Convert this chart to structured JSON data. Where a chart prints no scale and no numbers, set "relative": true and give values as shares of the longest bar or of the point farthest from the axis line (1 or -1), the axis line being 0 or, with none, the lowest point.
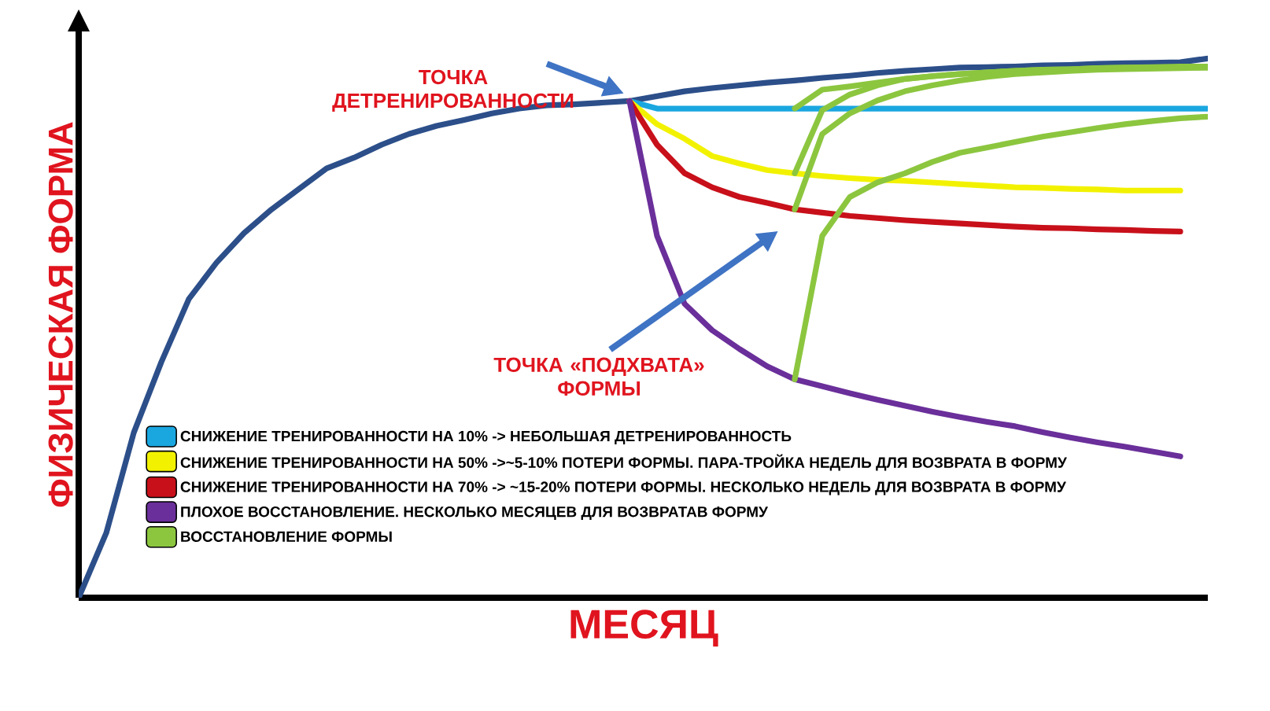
{
  "chart_data": {
    "type": "line",
    "relative": true,
    "xlabel": "МЕСЯЦ",
    "ylabel": "ФИЗИЧЕСКАЯ ФОРМА",
    "legend": "bottom left",
    "annotations": [
      "ТОЧКА ДЕТРЕНИРОВАННОСТИ",
      "ТОЧКА «ПОДХВАТА» ФОРМЫ"
    ],
    "categories": [
      null,
      null,
      null,
      null,
      null,
      null,
      null,
      null,
      null,
      null,
      null,
      null,
      null,
      null,
      null,
      null,
      null,
      null,
      null,
      null,
      null,
      null,
      null,
      null,
      null,
      null,
      null,
      null,
      null,
      null,
      null,
      null,
      null,
      null,
      null,
      null,
      null,
      null,
      null,
      null,
      null,
      null
    ],
    "series": [
      {
        "color": "#2c4f8a",
        "values": [
          0,
          0.12,
          0.306,
          0.437,
          0.554,
          0.621,
          0.676,
          0.72,
          0.758,
          0.796,
          0.816,
          0.84,
          0.86,
          0.875,
          0.886,
          0.898,
          0.907,
          0.913,
          0.915,
          0.918,
          0.921,
          0.93,
          0.939,
          0.945,
          0.95,
          0.955,
          0.959,
          0.964,
          0.968,
          0.973,
          0.977,
          0.98,
          0.983,
          0.984,
          0.985,
          0.987,
          0.988,
          0.99,
          0.991,
          0.992,
          0.993,
          1
        ]
      },
      {
        "name": "СНИЖЕНИЕ ТРЕНИРОВАННОСТИ НА 10% -> НЕБОЛЬШАЯ ДЕТРЕНИРОВАННОСТЬ",
        "color": "#1aa7e0",
        "values": [
          null,
          null,
          null,
          null,
          null,
          null,
          null,
          null,
          null,
          null,
          null,
          null,
          null,
          null,
          null,
          null,
          null,
          null,
          null,
          null,
          0.921,
          0.907,
          0.907,
          0.907,
          0.907,
          0.907,
          0.907,
          0.907,
          0.907,
          0.907,
          0.907,
          0.907,
          0.907,
          0.907,
          0.907,
          0.907,
          0.907,
          0.907,
          0.907,
          0.907,
          0.907,
          0.907
        ]
      },
      {
        "name": "СНИЖЕНИЕ ТРЕНИРОВАННОСТИ НА 50% ->~5-10% ПОТЕРИ ФОРМЫ. ПАРА-ТРОЙКА НЕДЕЛЬ ДЛЯ ВОЗВРАТА В ФОРМУ",
        "color": "#f2f200",
        "values": [
          null,
          null,
          null,
          null,
          null,
          null,
          null,
          null,
          null,
          null,
          null,
          null,
          null,
          null,
          null,
          null,
          null,
          null,
          null,
          null,
          0.921,
          0.878,
          0.851,
          0.819,
          0.805,
          0.793,
          0.787,
          0.782,
          0.778,
          0.775,
          0.773,
          0.77,
          0.767,
          0.764,
          0.761,
          0.76,
          0.758,
          0.757,
          0.755,
          0.755,
          0.755,
          null
        ]
      },
      {
        "name": "СНИЖЕНИЕ ТРЕНИРОВАННОСТИ НА 70% -> ~15-20% ПОТЕРИ ФОРМЫ. НЕСКОЛЬКО НЕДЕЛЬ ДЛЯ ВОЗВРАТА В ФОРМУ",
        "color": "#c8101a",
        "values": [
          null,
          null,
          null,
          null,
          null,
          null,
          null,
          null,
          null,
          null,
          null,
          null,
          null,
          null,
          null,
          null,
          null,
          null,
          null,
          null,
          0.921,
          0.84,
          0.787,
          0.761,
          0.743,
          0.732,
          0.72,
          0.714,
          0.708,
          0.704,
          0.7,
          0.697,
          0.694,
          0.691,
          0.688,
          0.686,
          0.685,
          0.683,
          0.682,
          0.68,
          0.679,
          null
        ]
      },
      {
        "name": "ПЛОХОЕ ВОССТАНОВЛЕНИЕ. НЕСКОЛЬКО МЕСЯЦЕВ ДЛЯ ВОЗВРАТАВ ФОРМУ",
        "color": "#6a2f9a",
        "values": [
          null,
          null,
          null,
          null,
          null,
          null,
          null,
          null,
          null,
          null,
          null,
          null,
          null,
          null,
          null,
          null,
          null,
          null,
          null,
          null,
          0.921,
          0.671,
          0.545,
          0.496,
          0.461,
          0.429,
          0.405,
          0.392,
          0.379,
          0.367,
          0.356,
          0.345,
          0.335,
          0.326,
          0.318,
          0.307,
          0.297,
          0.288,
          0.28,
          0.271,
          0.262,
          null
        ]
      },
      {
        "name": "ВОССТАНОВЛЕНИЕ ФОРМЫ",
        "color": "#8cc63f",
        "values": [
          null,
          null,
          null,
          null,
          null,
          null,
          null,
          null,
          null,
          null,
          null,
          null,
          null,
          null,
          null,
          null,
          null,
          null,
          null,
          null,
          null,
          null,
          null,
          null,
          null,
          null,
          0.907,
          0.942,
          0.948,
          0.955,
          0.962,
          0.967,
          0.971,
          0.974,
          0.977,
          0.979,
          0.98,
          0.982,
          0.983,
          0.984,
          0.985,
          0.985
        ]
      },
      {
        "color": "#8cc63f",
        "values": [
          null,
          null,
          null,
          null,
          null,
          null,
          null,
          null,
          null,
          null,
          null,
          null,
          null,
          null,
          null,
          null,
          null,
          null,
          null,
          null,
          null,
          null,
          null,
          null,
          null,
          null,
          0.787,
          0.904,
          0.933,
          0.95,
          0.962,
          0.967,
          0.971,
          0.974,
          0.977,
          0.979,
          0.98,
          0.982,
          0.983,
          0.983,
          0.983,
          0.983
        ]
      },
      {
        "color": "#8cc63f",
        "values": [
          null,
          null,
          null,
          null,
          null,
          null,
          null,
          null,
          null,
          null,
          null,
          null,
          null,
          null,
          null,
          null,
          null,
          null,
          null,
          null,
          null,
          null,
          null,
          null,
          null,
          null,
          0.72,
          0.86,
          0.898,
          0.922,
          0.939,
          0.95,
          0.959,
          0.966,
          0.971,
          0.974,
          0.977,
          0.979,
          0.98,
          0.981,
          0.982,
          0.983
        ]
      },
      {
        "color": "#8cc63f",
        "values": [
          null,
          null,
          null,
          null,
          null,
          null,
          null,
          null,
          null,
          null,
          null,
          null,
          null,
          null,
          null,
          null,
          null,
          null,
          null,
          null,
          null,
          null,
          null,
          null,
          null,
          null,
          0.405,
          0.671,
          0.743,
          0.77,
          0.787,
          0.808,
          0.825,
          0.835,
          0.845,
          0.855,
          0.863,
          0.871,
          0.878,
          0.884,
          0.889,
          0.892
        ]
      }
    ]
  }
}
